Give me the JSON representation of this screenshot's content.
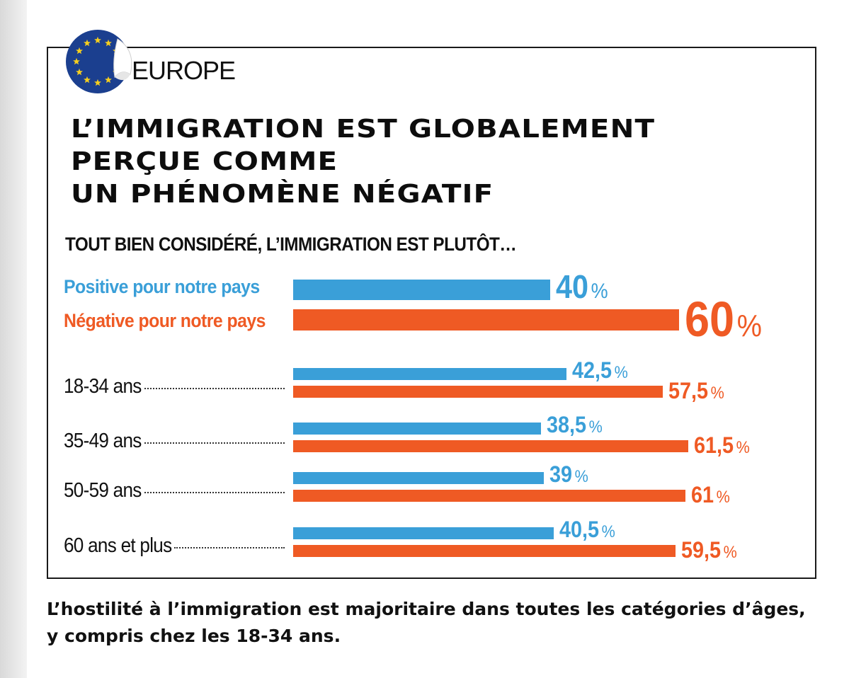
{
  "region_label": "EUROPE",
  "headline": [
    "L’IMMIGRATION EST GLOBALEMENT",
    "PERÇUE COMME",
    "UN PHÉNOMÈNE NÉGATIF"
  ],
  "question": "TOUT BIEN CONSIDÉRÉ, L’IMMIGRATION EST PLUTÔT…",
  "percent_sign": "%",
  "footer": "L’hostilité à l’immigration est majoritaire dans toutes les catégories d’âges, y compris chez les 18-34 ans.",
  "colors": {
    "positive": "#3a9fd8",
    "negative": "#ef5a24",
    "flag_blue": "#1b3f8f",
    "flag_star": "#f6cf1e"
  },
  "chart_data": {
    "type": "bar",
    "orientation": "horizontal",
    "series": [
      {
        "name": "Positive pour notre pays",
        "color": "#3a9fd8"
      },
      {
        "name": "Négative pour notre pays",
        "color": "#ef5a24"
      }
    ],
    "overall": {
      "positive": 40,
      "negative": 60,
      "positive_label": "40",
      "negative_label": "60"
    },
    "categories": [
      {
        "label": "18-34 ans",
        "positive": 42.5,
        "negative": 57.5,
        "positive_label": "42,5",
        "negative_label": "57,5"
      },
      {
        "label": "35-49 ans",
        "positive": 38.5,
        "negative": 61.5,
        "positive_label": "38,5",
        "negative_label": "61,5"
      },
      {
        "label": "50-59 ans",
        "positive": 39,
        "negative": 61,
        "positive_label": "39",
        "negative_label": "61"
      },
      {
        "label": "60 ans et plus",
        "positive": 40.5,
        "negative": 59.5,
        "positive_label": "40,5",
        "negative_label": "59,5"
      }
    ]
  }
}
